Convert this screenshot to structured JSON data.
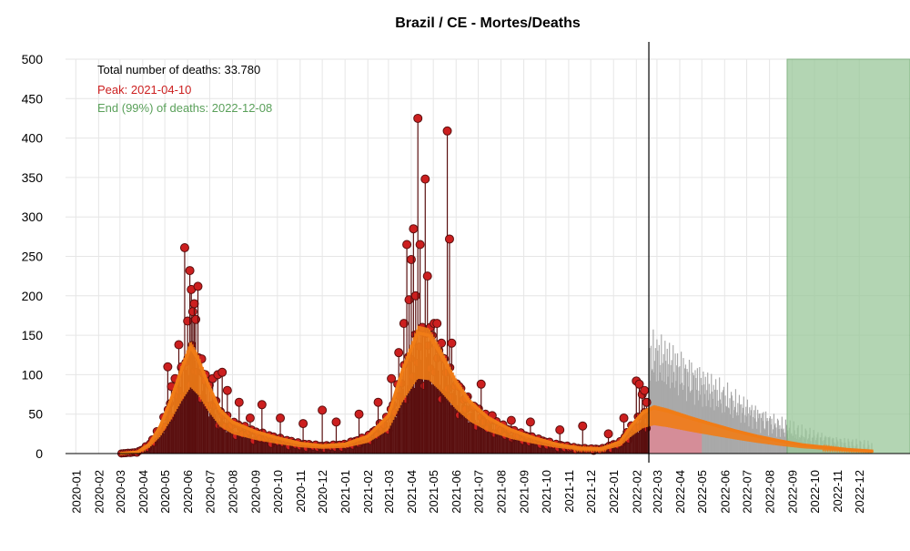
{
  "colors": {
    "observed_point": "#cc1f1f",
    "observed_outline": "#5a0f0f",
    "observed_line": "#5a0f0f",
    "smoothed_line": "#f07c16",
    "forecast_bars": "#a9a9a9",
    "end_region": "#9ac89a",
    "peak_text": "#cc1f1f",
    "end_text": "#5aa05a",
    "grid": "#e6e6e6"
  },
  "chart_data": {
    "type": "line",
    "title": "Brazil / CE - Mortes/Deaths",
    "xlabel": "",
    "ylabel": "",
    "ylim": [
      0,
      500
    ],
    "yticks": [
      0,
      50,
      100,
      150,
      200,
      250,
      300,
      350,
      400,
      450,
      500
    ],
    "x_tick_labels": [
      "2020-01",
      "2020-02",
      "2020-03",
      "2020-04",
      "2020-05",
      "2020-06",
      "2020-07",
      "2020-08",
      "2020-09",
      "2020-10",
      "2020-11",
      "2020-12",
      "2021-01",
      "2021-02",
      "2021-03",
      "2021-04",
      "2021-05",
      "2021-06",
      "2021-07",
      "2021-08",
      "2021-09",
      "2021-10",
      "2021-11",
      "2021-12",
      "2022-01",
      "2022-02",
      "2022-03",
      "2022-04",
      "2022-05",
      "2022-06",
      "2022-07",
      "2022-08",
      "2022-09",
      "2022-10",
      "2022-11",
      "2022-12"
    ],
    "xlim": [
      "2019-12-18",
      "2023-02-08"
    ],
    "annotations": {
      "total": "Total number of deaths: 33.780",
      "peak": "Peak: 2021-04-10",
      "end": "End (99%) of deaths: 2022-12-08"
    },
    "current_date": "2022-02-18",
    "end_region_start": "2022-08-25",
    "smoothed_series": [
      {
        "x": "2020-03-01",
        "y": 0
      },
      {
        "x": "2020-03-25",
        "y": 2
      },
      {
        "x": "2020-04-10",
        "y": 12
      },
      {
        "x": "2020-04-25",
        "y": 35
      },
      {
        "x": "2020-05-10",
        "y": 70
      },
      {
        "x": "2020-05-25",
        "y": 110
      },
      {
        "x": "2020-06-05",
        "y": 135
      },
      {
        "x": "2020-06-15",
        "y": 120
      },
      {
        "x": "2020-06-30",
        "y": 85
      },
      {
        "x": "2020-07-15",
        "y": 55
      },
      {
        "x": "2020-08-01",
        "y": 40
      },
      {
        "x": "2020-09-01",
        "y": 28
      },
      {
        "x": "2020-10-01",
        "y": 20
      },
      {
        "x": "2020-11-01",
        "y": 13
      },
      {
        "x": "2020-12-01",
        "y": 10
      },
      {
        "x": "2021-01-01",
        "y": 12
      },
      {
        "x": "2021-02-01",
        "y": 22
      },
      {
        "x": "2021-03-01",
        "y": 48
      },
      {
        "x": "2021-03-20",
        "y": 105
      },
      {
        "x": "2021-04-10",
        "y": 153
      },
      {
        "x": "2021-04-25",
        "y": 150
      },
      {
        "x": "2021-05-10",
        "y": 128
      },
      {
        "x": "2021-06-01",
        "y": 90
      },
      {
        "x": "2021-06-20",
        "y": 65
      },
      {
        "x": "2021-07-15",
        "y": 45
      },
      {
        "x": "2021-08-15",
        "y": 30
      },
      {
        "x": "2021-09-15",
        "y": 20
      },
      {
        "x": "2021-10-15",
        "y": 12
      },
      {
        "x": "2021-11-15",
        "y": 7
      },
      {
        "x": "2021-12-15",
        "y": 6
      },
      {
        "x": "2022-01-10",
        "y": 15
      },
      {
        "x": "2022-01-25",
        "y": 35
      },
      {
        "x": "2022-02-10",
        "y": 52
      },
      {
        "x": "2022-02-25",
        "y": 58
      },
      {
        "x": "2022-03-15",
        "y": 54
      },
      {
        "x": "2022-04-15",
        "y": 45
      },
      {
        "x": "2022-05-15",
        "y": 37
      },
      {
        "x": "2022-06-15",
        "y": 29
      },
      {
        "x": "2022-07-15",
        "y": 22
      },
      {
        "x": "2022-08-15",
        "y": 16
      },
      {
        "x": "2022-09-15",
        "y": 11
      },
      {
        "x": "2022-10-15",
        "y": 8
      },
      {
        "x": "2022-11-15",
        "y": 5
      },
      {
        "x": "2022-12-20",
        "y": 3
      }
    ],
    "observed_points": [
      {
        "x": "2020-05-05",
        "y": 110
      },
      {
        "x": "2020-05-10",
        "y": 85
      },
      {
        "x": "2020-05-15",
        "y": 95
      },
      {
        "x": "2020-05-20",
        "y": 138
      },
      {
        "x": "2020-05-24",
        "y": 110
      },
      {
        "x": "2020-05-28",
        "y": 261
      },
      {
        "x": "2020-06-01",
        "y": 168
      },
      {
        "x": "2020-06-04",
        "y": 232
      },
      {
        "x": "2020-06-06",
        "y": 208
      },
      {
        "x": "2020-06-08",
        "y": 180
      },
      {
        "x": "2020-06-10",
        "y": 190
      },
      {
        "x": "2020-06-12",
        "y": 170
      },
      {
        "x": "2020-06-15",
        "y": 212
      },
      {
        "x": "2020-06-20",
        "y": 120
      },
      {
        "x": "2020-06-25",
        "y": 100
      },
      {
        "x": "2020-07-05",
        "y": 95
      },
      {
        "x": "2020-07-12",
        "y": 100
      },
      {
        "x": "2020-07-18",
        "y": 103
      },
      {
        "x": "2020-07-25",
        "y": 80
      },
      {
        "x": "2020-08-10",
        "y": 65
      },
      {
        "x": "2020-08-25",
        "y": 45
      },
      {
        "x": "2020-09-10",
        "y": 62
      },
      {
        "x": "2020-10-05",
        "y": 45
      },
      {
        "x": "2020-11-05",
        "y": 38
      },
      {
        "x": "2020-12-01",
        "y": 55
      },
      {
        "x": "2020-12-20",
        "y": 40
      },
      {
        "x": "2021-01-20",
        "y": 50
      },
      {
        "x": "2021-02-15",
        "y": 65
      },
      {
        "x": "2021-03-05",
        "y": 95
      },
      {
        "x": "2021-03-15",
        "y": 128
      },
      {
        "x": "2021-03-22",
        "y": 165
      },
      {
        "x": "2021-03-26",
        "y": 265
      },
      {
        "x": "2021-03-29",
        "y": 195
      },
      {
        "x": "2021-04-01",
        "y": 246
      },
      {
        "x": "2021-04-04",
        "y": 285
      },
      {
        "x": "2021-04-07",
        "y": 200
      },
      {
        "x": "2021-04-10",
        "y": 425
      },
      {
        "x": "2021-04-13",
        "y": 265
      },
      {
        "x": "2021-04-16",
        "y": 160
      },
      {
        "x": "2021-04-20",
        "y": 348
      },
      {
        "x": "2021-04-23",
        "y": 225
      },
      {
        "x": "2021-04-27",
        "y": 160
      },
      {
        "x": "2021-05-02",
        "y": 165
      },
      {
        "x": "2021-05-06",
        "y": 165
      },
      {
        "x": "2021-05-12",
        "y": 140
      },
      {
        "x": "2021-05-16",
        "y": 120
      },
      {
        "x": "2021-05-20",
        "y": 409
      },
      {
        "x": "2021-05-23",
        "y": 272
      },
      {
        "x": "2021-05-26",
        "y": 140
      },
      {
        "x": "2021-06-05",
        "y": 85
      },
      {
        "x": "2021-06-15",
        "y": 70
      },
      {
        "x": "2021-06-25",
        "y": 60
      },
      {
        "x": "2021-07-05",
        "y": 88
      },
      {
        "x": "2021-07-20",
        "y": 48
      },
      {
        "x": "2021-08-15",
        "y": 42
      },
      {
        "x": "2021-09-10",
        "y": 40
      },
      {
        "x": "2021-10-20",
        "y": 30
      },
      {
        "x": "2021-11-20",
        "y": 35
      },
      {
        "x": "2021-12-25",
        "y": 25
      },
      {
        "x": "2022-01-15",
        "y": 45
      },
      {
        "x": "2022-02-01",
        "y": 92
      },
      {
        "x": "2022-02-05",
        "y": 88
      },
      {
        "x": "2022-02-09",
        "y": 75
      },
      {
        "x": "2022-02-12",
        "y": 80
      },
      {
        "x": "2022-02-15",
        "y": 65
      }
    ]
  }
}
